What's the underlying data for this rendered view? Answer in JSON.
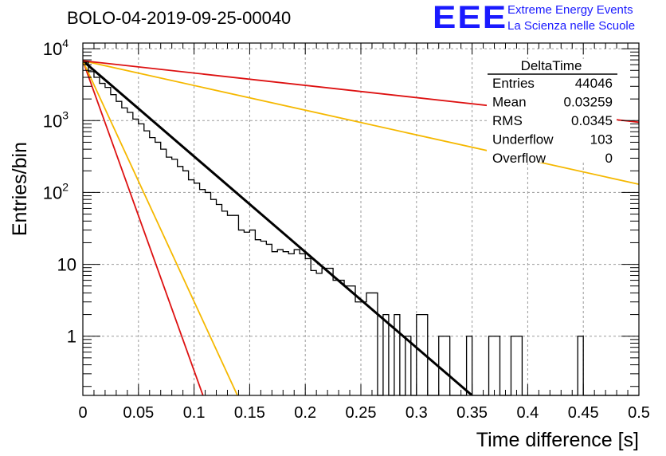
{
  "title": "BOLO-04-2019-09-25-00040",
  "logo": {
    "mark": "EEE",
    "line1": "Extreme Energy Events",
    "line2": "La Scienza nelle Scuole"
  },
  "colors": {
    "histogram": "#000000",
    "fit": "#000000",
    "red_lines": "#dd1111",
    "orange_lines": "#f5b800",
    "grid": "#9a9a9a",
    "logo": "#1a1aff"
  },
  "stats": {
    "name": "DeltaTime",
    "rows": [
      {
        "label": "Entries",
        "value": "44046"
      },
      {
        "label": "Mean",
        "value": "0.03259"
      },
      {
        "label": "RMS",
        "value": "0.0345"
      },
      {
        "label": "Underflow",
        "value": "103"
      },
      {
        "label": "Overflow",
        "value": "0"
      }
    ]
  },
  "chart_data": {
    "type": "line",
    "title": "BOLO-04-2019-09-25-00040",
    "xlabel": "Time difference [s]",
    "ylabel": "Entries/bin",
    "xlim": [
      0,
      0.5
    ],
    "ylim": [
      0.15,
      12000
    ],
    "y_scale": "log",
    "grid": true,
    "x_ticks": [
      0,
      0.05,
      0.1,
      0.15,
      0.2,
      0.25,
      0.3,
      0.35,
      0.4,
      0.45,
      0.5
    ],
    "x_tick_labels": [
      "0",
      "0.05",
      "0.1",
      "0.15",
      "0.2",
      "0.25",
      "0.3",
      "0.35",
      "0.4",
      "0.45",
      "0.5"
    ],
    "y_ticks": [
      1,
      10,
      100,
      1000,
      10000
    ],
    "y_tick_labels": [
      {
        "base": "1",
        "exp": ""
      },
      {
        "base": "10",
        "exp": ""
      },
      {
        "base": "10",
        "exp": "2"
      },
      {
        "base": "10",
        "exp": "3"
      },
      {
        "base": "10",
        "exp": "4"
      }
    ],
    "histogram": {
      "bin_width": 0.005,
      "bin_start": 0,
      "values": [
        6500,
        4800,
        4000,
        3300,
        2900,
        2300,
        1850,
        1500,
        1300,
        1050,
        900,
        720,
        580,
        500,
        400,
        310,
        290,
        230,
        200,
        150,
        135,
        110,
        100,
        80,
        68,
        55,
        48,
        48,
        30,
        28,
        30,
        22,
        21,
        19,
        15,
        16,
        15,
        14,
        16,
        14,
        12,
        8.2,
        7.5,
        8.8,
        8.8,
        6,
        6,
        5,
        5,
        3,
        3,
        4,
        4,
        0,
        2,
        0,
        2,
        0,
        1,
        0,
        2,
        2,
        0,
        0,
        1,
        1,
        0,
        0,
        0,
        1,
        0,
        0,
        0,
        1,
        1,
        0,
        0,
        1,
        1,
        0,
        0,
        0,
        0,
        0,
        0,
        0,
        0,
        0,
        0,
        1,
        0,
        0,
        0,
        0,
        0,
        0,
        0,
        0,
        0,
        0
      ]
    },
    "lines": [
      {
        "style": "fit",
        "color": "#000000",
        "points": [
          [
            0,
            6800
          ],
          [
            0.35,
            0.15
          ]
        ]
      },
      {
        "style": "steep",
        "color": "#dd1111",
        "points": [
          [
            0,
            6800
          ],
          [
            0.108,
            0.15
          ]
        ]
      },
      {
        "style": "steep",
        "color": "#f5b800",
        "points": [
          [
            0,
            6800
          ],
          [
            0.139,
            0.15
          ]
        ]
      },
      {
        "style": "shallow",
        "color": "#f5b800",
        "points": [
          [
            0,
            6800
          ],
          [
            0.5,
            130
          ]
        ]
      },
      {
        "style": "shallow",
        "color": "#dd1111",
        "points": [
          [
            0,
            6800
          ],
          [
            0.5,
            950
          ]
        ]
      }
    ]
  }
}
